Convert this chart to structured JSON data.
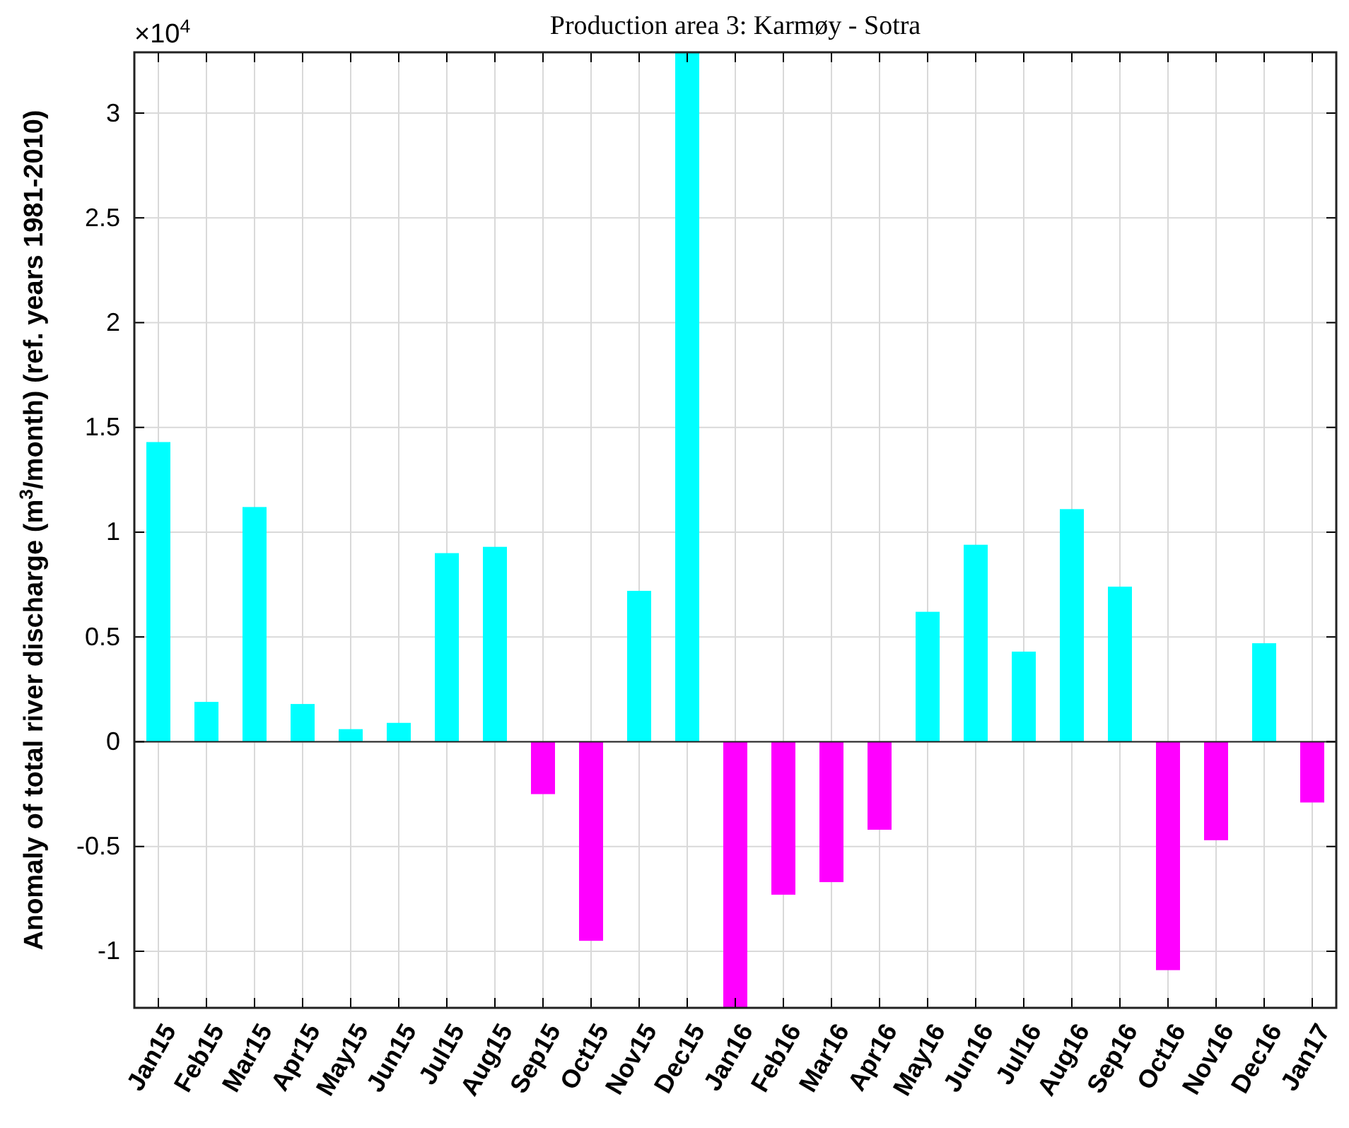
{
  "chart_data": {
    "type": "bar",
    "title": "Production area 3: Karmøy - Sotra",
    "ylabel": "Anomaly of total river discharge (m$^{3}$/month) (ref. years 1981-2010)",
    "annotations": [
      "×10$^{4}$"
    ],
    "categories": [
      "Jan15",
      "Feb15",
      "Mar15",
      "Apr15",
      "May15",
      "Jun15",
      "Jul15",
      "Aug15",
      "Sep15",
      "Oct15",
      "Nov15",
      "Dec15",
      "Jan16",
      "Feb16",
      "Mar16",
      "Apr16",
      "May16",
      "Jun16",
      "Jul16",
      "Aug16",
      "Sep16",
      "Oct16",
      "Nov16",
      "Dec16",
      "Jan17"
    ],
    "values": [
      1.43,
      0.19,
      1.12,
      0.18,
      0.06,
      0.09,
      0.9,
      0.93,
      -0.25,
      -0.95,
      0.72,
      3.29,
      -1.27,
      -0.73,
      -0.67,
      -0.42,
      0.62,
      0.94,
      0.43,
      1.11,
      0.74,
      -1.09,
      -0.47,
      0.47,
      -0.29
    ],
    "colors": [
      "#00ffff",
      "#00ffff",
      "#00ffff",
      "#00ffff",
      "#00ffff",
      "#00ffff",
      "#00ffff",
      "#00ffff",
      "#ff00ff",
      "#ff00ff",
      "#00ffff",
      "#00ffff",
      "#ff00ff",
      "#ff00ff",
      "#ff00ff",
      "#ff00ff",
      "#00ffff",
      "#00ffff",
      "#00ffff",
      "#00ffff",
      "#00ffff",
      "#ff00ff",
      "#ff00ff",
      "#00ffff",
      "#ff00ff"
    ],
    "ylim": [
      -1.27,
      3.29
    ],
    "yticks": [
      -1,
      -0.5,
      0,
      0.5,
      1,
      1.5,
      2,
      2.5,
      3
    ],
    "grid": true
  }
}
